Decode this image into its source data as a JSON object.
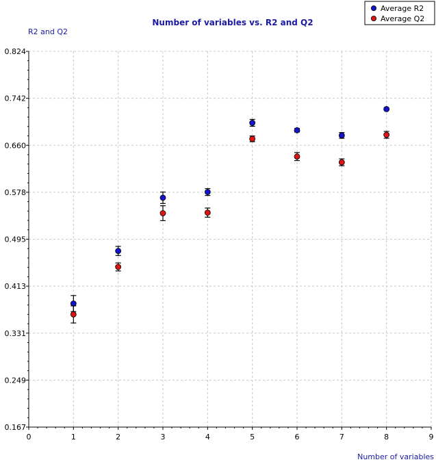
{
  "chart_data": {
    "type": "scatter",
    "title": "Number of variables vs. R2 and Q2",
    "xlabel": "Number of variables",
    "ylabel": "R2 and Q2",
    "xlim": [
      0,
      9
    ],
    "ylim": [
      0.167,
      0.824
    ],
    "x_ticks": [
      "0",
      "1",
      "2",
      "3",
      "4",
      "5",
      "6",
      "7",
      "8",
      "9"
    ],
    "y_ticks": [
      "0.167",
      "0.249",
      "0.331",
      "0.413",
      "0.495",
      "0.578",
      "0.660",
      "0.742",
      "0.824"
    ],
    "grid": true,
    "legend_position": "top-right",
    "series": [
      {
        "name": "Average R2",
        "color": "#1414c8",
        "x": [
          1,
          2,
          3,
          4,
          5,
          6,
          7,
          8
        ],
        "values": [
          0.383,
          0.475,
          0.568,
          0.578,
          0.699,
          0.686,
          0.677,
          0.723
        ],
        "errors": [
          0.014,
          0.008,
          0.01,
          0.006,
          0.006,
          0.003,
          0.005,
          0.002
        ]
      },
      {
        "name": "Average Q2",
        "color": "#dc1414",
        "x": [
          1,
          2,
          3,
          4,
          5,
          6,
          7,
          8
        ],
        "values": [
          0.364,
          0.447,
          0.541,
          0.542,
          0.671,
          0.64,
          0.63,
          0.678
        ],
        "errors": [
          0.015,
          0.007,
          0.013,
          0.008,
          0.005,
          0.007,
          0.006,
          0.006
        ]
      }
    ]
  }
}
